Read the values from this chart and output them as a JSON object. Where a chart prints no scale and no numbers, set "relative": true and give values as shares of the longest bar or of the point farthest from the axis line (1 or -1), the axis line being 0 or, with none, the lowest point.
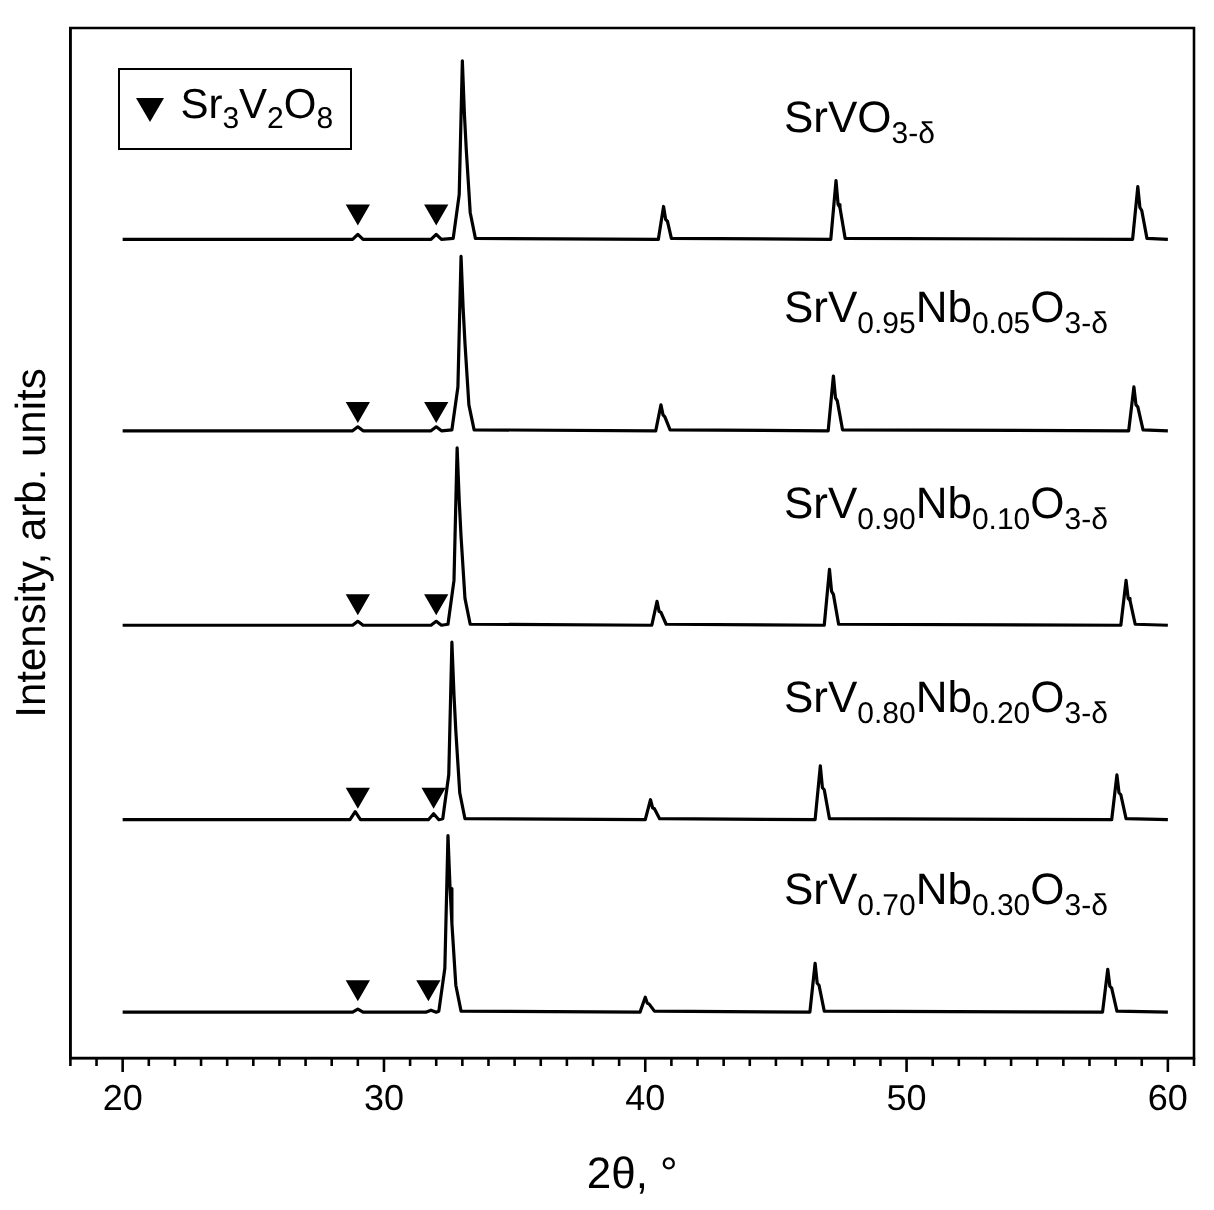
{
  "chart_data": {
    "type": "line",
    "relative": true,
    "xlabel": "2θ, °",
    "ylabel": "Intensity, arb. units",
    "xlim": [
      18,
      61
    ],
    "xticks": [
      {
        "value": 18,
        "label": null
      },
      {
        "value": 19,
        "label": null
      },
      20,
      {
        "value": 21,
        "label": null
      },
      {
        "value": 22,
        "label": null
      },
      {
        "value": 23,
        "label": null
      },
      {
        "value": 24,
        "label": null
      },
      {
        "value": 25,
        "label": null
      },
      {
        "value": 26,
        "label": null
      },
      {
        "value": 27,
        "label": null
      },
      {
        "value": 28,
        "label": null
      },
      {
        "value": 29,
        "label": null
      },
      30,
      {
        "value": 31,
        "label": null
      },
      {
        "value": 32,
        "label": null
      },
      {
        "value": 33,
        "label": null
      },
      {
        "value": 34,
        "label": null
      },
      {
        "value": 35,
        "label": null
      },
      {
        "value": 36,
        "label": null
      },
      {
        "value": 37,
        "label": null
      },
      {
        "value": 38,
        "label": null
      },
      {
        "value": 39,
        "label": null
      },
      40,
      {
        "value": 41,
        "label": null
      },
      {
        "value": 42,
        "label": null
      },
      {
        "value": 43,
        "label": null
      },
      {
        "value": 44,
        "label": null
      },
      {
        "value": 45,
        "label": null
      },
      {
        "value": 46,
        "label": null
      },
      {
        "value": 47,
        "label": null
      },
      {
        "value": 48,
        "label": null
      },
      {
        "value": 49,
        "label": null
      },
      50,
      {
        "value": 51,
        "label": null
      },
      {
        "value": 52,
        "label": null
      },
      {
        "value": 53,
        "label": null
      },
      {
        "value": 54,
        "label": null
      },
      {
        "value": 55,
        "label": null
      },
      {
        "value": 56,
        "label": null
      },
      {
        "value": 57,
        "label": null
      },
      {
        "value": 58,
        "label": null
      },
      {
        "value": 59,
        "label": null
      },
      60,
      {
        "value": 61,
        "label": null
      }
    ],
    "legend": "top left",
    "line_style": "solid",
    "series": [
      {
        "name": "SrVO$_{3-δ}$",
        "color": "#000000",
        "x": [
          20,
          28.8,
          29,
          29.2,
          31.8,
          32,
          32.2,
          32.65,
          32.88,
          33,
          33.08,
          33.15,
          33.3,
          33.5,
          40.5,
          40.7,
          40.78,
          40.85,
          41,
          47.1,
          47.3,
          47.38,
          47.45,
          47.65,
          58.65,
          58.85,
          58.93,
          59,
          59.2,
          60
        ],
        "values": [
          0.821,
          0.821,
          0.826,
          0.821,
          0.821,
          0.826,
          0.821,
          0.822,
          0.866,
          1,
          0.946,
          0.911,
          0.848,
          0.822,
          0.821,
          0.854,
          0.841,
          0.839,
          0.822,
          0.821,
          0.88,
          0.856,
          0.853,
          0.822,
          0.821,
          0.874,
          0.853,
          0.85,
          0.822,
          0.821
        ]
      },
      {
        "name": "SrV$_{0.95}$Nb$_{0.05}$O$_{3-δ}$",
        "color": "#000000",
        "x": [
          20,
          28.8,
          29,
          29.2,
          31.8,
          32,
          32.2,
          32.6,
          32.83,
          32.95,
          33.03,
          33.1,
          33.25,
          33.45,
          40.4,
          40.6,
          40.68,
          40.75,
          40.95,
          47,
          47.2,
          47.28,
          47.35,
          47.55,
          58.5,
          58.7,
          58.78,
          58.85,
          59.05,
          60
        ],
        "values": [
          0.629,
          0.629,
          0.633,
          0.629,
          0.629,
          0.633,
          0.629,
          0.63,
          0.673,
          0.804,
          0.752,
          0.717,
          0.655,
          0.63,
          0.629,
          0.655,
          0.645,
          0.643,
          0.63,
          0.629,
          0.684,
          0.662,
          0.659,
          0.63,
          0.629,
          0.673,
          0.655,
          0.653,
          0.63,
          0.629
        ]
      },
      {
        "name": "SrV$_{0.90}$Nb$_{0.10}$O$_{3-δ}$",
        "color": "#000000",
        "x": [
          20,
          28.8,
          29,
          29.2,
          31.8,
          32,
          32.2,
          32.45,
          32.68,
          32.8,
          32.88,
          32.95,
          33.1,
          33.3,
          40.25,
          40.45,
          40.53,
          40.6,
          40.8,
          46.85,
          47.05,
          47.13,
          47.2,
          47.4,
          58.2,
          58.4,
          58.48,
          58.55,
          58.75,
          60
        ],
        "values": [
          0.434,
          0.434,
          0.438,
          0.434,
          0.434,
          0.438,
          0.434,
          0.435,
          0.479,
          0.612,
          0.559,
          0.523,
          0.461,
          0.435,
          0.434,
          0.458,
          0.448,
          0.447,
          0.435,
          0.434,
          0.49,
          0.468,
          0.465,
          0.435,
          0.434,
          0.479,
          0.461,
          0.459,
          0.435,
          0.434
        ]
      },
      {
        "name": "SrV$_{0.80}$Nb$_{0.20}$O$_{3-δ}$",
        "color": "#000000",
        "x": [
          20,
          28.7,
          28.9,
          29.1,
          31.7,
          31.9,
          32.1,
          32.25,
          32.48,
          32.6,
          32.68,
          32.75,
          32.9,
          33.1,
          40,
          40.2,
          40.28,
          40.35,
          40.55,
          46.5,
          46.7,
          46.78,
          46.85,
          47.05,
          57.85,
          58.05,
          58.13,
          58.2,
          58.4,
          60
        ],
        "values": [
          0.239,
          0.239,
          0.247,
          0.239,
          0.239,
          0.245,
          0.239,
          0.24,
          0.284,
          0.417,
          0.364,
          0.328,
          0.266,
          0.24,
          0.239,
          0.259,
          0.251,
          0.25,
          0.24,
          0.239,
          0.293,
          0.271,
          0.269,
          0.24,
          0.239,
          0.284,
          0.266,
          0.264,
          0.24,
          0.239
        ]
      },
      {
        "name": "SrV$_{0.70}$Nb$_{0.30}$O$_{3-δ}$",
        "color": "#000000",
        "x": [
          20,
          28.8,
          29,
          29.2,
          31.6,
          31.8,
          32,
          32.1,
          32.33,
          32.45,
          32.53,
          32.6,
          32.75,
          32.95,
          39.8,
          40,
          40.08,
          40.15,
          40.35,
          46.3,
          46.5,
          46.58,
          46.65,
          46.85,
          57.5,
          57.7,
          57.78,
          57.85,
          58.05,
          60
        ],
        "values": [
          0.046,
          0.046,
          0.049,
          0.046,
          0.046,
          0.048,
          0.046,
          0.047,
          0.09,
          0.223,
          0.17,
          0.135,
          0.073,
          0.047,
          0.046,
          0.061,
          0.055,
          0.054,
          0.047,
          0.046,
          0.095,
          0.075,
          0.073,
          0.047,
          0.046,
          0.089,
          0.072,
          0.07,
          0.047,
          0.046
        ]
      },
      {
        "name": "Sr$_{3}$V$_{2}$O$_{8}$",
        "type": "scatter",
        "marker": "triangle",
        "color": "#000000",
        "x": [
          29,
          32,
          29,
          32,
          29,
          32,
          29,
          31.9,
          29,
          31.7
        ],
        "values": [
          0.849,
          0.849,
          0.651,
          0.651,
          0.458,
          0.458,
          0.264,
          0.264,
          0.071,
          0.071
        ]
      }
    ]
  }
}
